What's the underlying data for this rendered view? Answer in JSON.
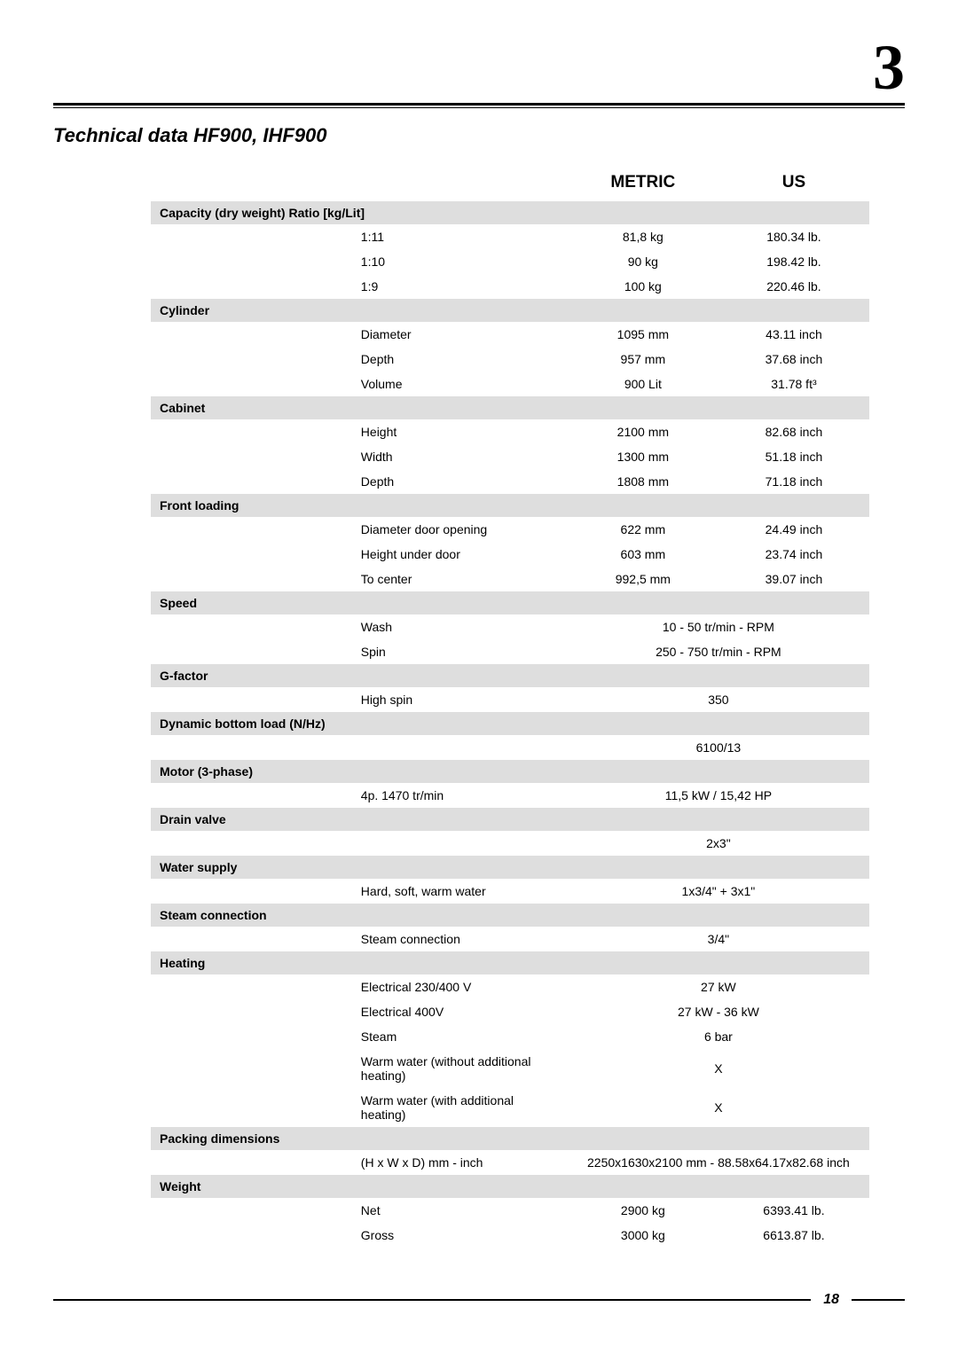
{
  "page": {
    "top_number": "3",
    "title": "Technical data HF900, IHF900",
    "footer_page": "18"
  },
  "columns": {
    "metric": "METRIC",
    "us": "US"
  },
  "sections": [
    {
      "header": "Capacity (dry weight) Ratio [kg/Lit]",
      "rows": [
        {
          "label": "1:11",
          "metric": "81,8 kg",
          "us": "180.34 lb."
        },
        {
          "label": "1:10",
          "metric": "90 kg",
          "us": "198.42 lb."
        },
        {
          "label": "1:9",
          "metric": "100 kg",
          "us": "220.46 lb."
        }
      ]
    },
    {
      "header": "Cylinder",
      "rows": [
        {
          "label": "Diameter",
          "metric": "1095 mm",
          "us": "43.11 inch"
        },
        {
          "label": "Depth",
          "metric": "957 mm",
          "us": "37.68 inch"
        },
        {
          "label": "Volume",
          "metric": "900 Lit",
          "us": "31.78 ft³"
        }
      ]
    },
    {
      "header": "Cabinet",
      "rows": [
        {
          "label": "Height",
          "metric": "2100 mm",
          "us": "82.68 inch"
        },
        {
          "label": "Width",
          "metric": "1300 mm",
          "us": "51.18 inch"
        },
        {
          "label": "Depth",
          "metric": "1808 mm",
          "us": "71.18 inch"
        }
      ]
    },
    {
      "header": "Front loading",
      "rows": [
        {
          "label": "Diameter door opening",
          "metric": "622 mm",
          "us": "24.49 inch"
        },
        {
          "label": "Height under door",
          "metric": "603 mm",
          "us": "23.74 inch"
        },
        {
          "label": "To center",
          "metric": "992,5 mm",
          "us": "39.07 inch"
        }
      ]
    },
    {
      "header": "Speed",
      "rows": [
        {
          "label": "Wash",
          "merged": "10 - 50 tr/min - RPM"
        },
        {
          "label": "Spin",
          "merged": "250 - 750 tr/min - RPM"
        }
      ]
    },
    {
      "header": "G-factor",
      "rows": [
        {
          "label": "High spin",
          "merged": "350"
        }
      ]
    },
    {
      "header": "Dynamic bottom load (N/Hz)",
      "rows": [
        {
          "label": "",
          "merged": "6100/13"
        }
      ]
    },
    {
      "header": "Motor (3-phase)",
      "rows": [
        {
          "label": "4p. 1470 tr/min",
          "merged": "11,5 kW / 15,42 HP"
        }
      ]
    },
    {
      "header": "Drain valve",
      "rows": [
        {
          "label": "",
          "merged": "2x3\""
        }
      ]
    },
    {
      "header": "Water supply",
      "rows": [
        {
          "label": "Hard, soft, warm water",
          "merged": "1x3/4\" + 3x1\""
        }
      ]
    },
    {
      "header": "Steam connection",
      "rows": [
        {
          "label": "Steam connection",
          "merged": "3/4\""
        }
      ]
    },
    {
      "header": "Heating",
      "rows": [
        {
          "label": "Electrical 230/400 V",
          "merged": "27 kW"
        },
        {
          "label": "Electrical 400V",
          "merged": "27 kW - 36 kW"
        },
        {
          "label": "Steam",
          "merged": "6 bar"
        },
        {
          "label": "Warm water (without additional heating)",
          "merged": "X"
        },
        {
          "label": "Warm water (with additional heating)",
          "merged": "X"
        }
      ]
    },
    {
      "header": "Packing dimensions",
      "rows": [
        {
          "label": "(H x W x D) mm - inch",
          "merged": "2250x1630x2100 mm - 88.58x64.17x82.68 inch"
        }
      ]
    },
    {
      "header": "Weight",
      "rows": [
        {
          "label": "Net",
          "metric": "2900 kg",
          "us": "6393.41 lb."
        },
        {
          "label": "Gross",
          "metric": "3000 kg",
          "us": "6613.87 lb."
        }
      ]
    }
  ]
}
